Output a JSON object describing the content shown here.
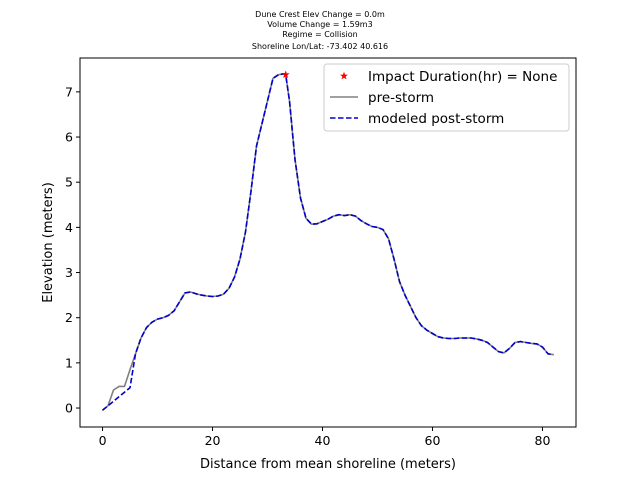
{
  "chart_data": {
    "type": "line",
    "title_lines": [
      "Dune Crest Elev Change = 0.0m",
      "Volume Change = 1.59m3",
      "Regime = Collision",
      "Shoreline Lon/Lat: -73.402 40.616"
    ],
    "xlabel": "Distance from mean shoreline (meters)",
    "ylabel": "Elevation (meters)",
    "xlim": [
      -4.1,
      86.1
    ],
    "ylim": [
      -0.42,
      7.75
    ],
    "xticks": [
      0,
      20,
      40,
      60,
      80
    ],
    "yticks": [
      0,
      1,
      2,
      3,
      4,
      5,
      6,
      7
    ],
    "grid": false,
    "legend_position": "top-right",
    "series": [
      {
        "name": "pre-storm",
        "style": "solid",
        "color": "#808080",
        "x": [
          0,
          1,
          2,
          3,
          4,
          5,
          6,
          7,
          8,
          9,
          10,
          11,
          12,
          13,
          14,
          15,
          16,
          17,
          18,
          19,
          20,
          21,
          22,
          23,
          24,
          25,
          26,
          27,
          28,
          29,
          30,
          31,
          32,
          33,
          33.3,
          34,
          35,
          36,
          37,
          38,
          39,
          40,
          41,
          42,
          43,
          44,
          45,
          46,
          47,
          48,
          49,
          50,
          51,
          52,
          53,
          54,
          55,
          56,
          57,
          58,
          59,
          60,
          61,
          62,
          63,
          64,
          65,
          66,
          67,
          68,
          69,
          70,
          71,
          72,
          73,
          74,
          75,
          76,
          77,
          78,
          79,
          80,
          81,
          82
        ],
        "y": [
          -0.05,
          0.05,
          0.4,
          0.48,
          0.48,
          0.85,
          1.2,
          1.55,
          1.78,
          1.9,
          1.97,
          2.0,
          2.05,
          2.15,
          2.35,
          2.55,
          2.57,
          2.53,
          2.5,
          2.48,
          2.47,
          2.48,
          2.52,
          2.65,
          2.9,
          3.3,
          3.9,
          4.8,
          5.8,
          6.3,
          6.8,
          7.3,
          7.38,
          7.4,
          7.38,
          6.8,
          5.5,
          4.65,
          4.2,
          4.07,
          4.08,
          4.13,
          4.18,
          4.25,
          4.28,
          4.26,
          4.28,
          4.25,
          4.15,
          4.08,
          4.02,
          4.0,
          3.95,
          3.75,
          3.3,
          2.8,
          2.5,
          2.25,
          2.0,
          1.82,
          1.72,
          1.65,
          1.58,
          1.55,
          1.54,
          1.54,
          1.55,
          1.55,
          1.55,
          1.53,
          1.5,
          1.45,
          1.35,
          1.25,
          1.22,
          1.32,
          1.45,
          1.47,
          1.45,
          1.43,
          1.42,
          1.35,
          1.2,
          1.18
        ]
      },
      {
        "name": "modeled post-storm",
        "style": "dashed",
        "color": "#0000cc",
        "x": [
          0,
          1,
          2,
          3,
          4,
          5,
          6,
          7,
          8,
          9,
          10,
          11,
          12,
          13,
          14,
          15,
          16,
          17,
          18,
          19,
          20,
          21,
          22,
          23,
          24,
          25,
          26,
          27,
          28,
          29,
          30,
          31,
          32,
          33,
          33.3,
          34,
          35,
          36,
          37,
          38,
          39,
          40,
          41,
          42,
          43,
          44,
          45,
          46,
          47,
          48,
          49,
          50,
          51,
          52,
          53,
          54,
          55,
          56,
          57,
          58,
          59,
          60,
          61,
          62,
          63,
          64,
          65,
          66,
          67,
          68,
          69,
          70,
          71,
          72,
          73,
          74,
          75,
          76,
          77,
          78,
          79,
          80,
          81,
          82
        ],
        "y": [
          -0.05,
          0.05,
          0.15,
          0.25,
          0.35,
          0.45,
          1.2,
          1.55,
          1.78,
          1.9,
          1.97,
          2.0,
          2.05,
          2.15,
          2.35,
          2.55,
          2.57,
          2.53,
          2.5,
          2.48,
          2.47,
          2.48,
          2.52,
          2.65,
          2.9,
          3.3,
          3.9,
          4.8,
          5.8,
          6.3,
          6.8,
          7.3,
          7.38,
          7.4,
          7.38,
          6.8,
          5.5,
          4.65,
          4.2,
          4.07,
          4.08,
          4.13,
          4.18,
          4.25,
          4.28,
          4.26,
          4.28,
          4.25,
          4.15,
          4.08,
          4.02,
          4.0,
          3.95,
          3.75,
          3.3,
          2.8,
          2.5,
          2.25,
          2.0,
          1.82,
          1.72,
          1.65,
          1.58,
          1.55,
          1.54,
          1.54,
          1.55,
          1.55,
          1.55,
          1.53,
          1.5,
          1.45,
          1.35,
          1.25,
          1.22,
          1.32,
          1.45,
          1.47,
          1.45,
          1.43,
          1.42,
          1.35,
          1.2,
          1.18
        ]
      }
    ],
    "markers": [
      {
        "name": "Impact Duration(hr) = None",
        "shape": "star",
        "color": "#ff0000",
        "x": 33.3,
        "y": 7.38
      }
    ]
  }
}
